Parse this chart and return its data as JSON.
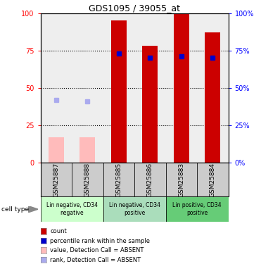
{
  "title": "GDS1095 / 39055_at",
  "samples": [
    "GSM25887",
    "GSM25888",
    "GSM25885",
    "GSM25886",
    "GSM25883",
    "GSM25884"
  ],
  "cell_types": [
    {
      "label": "Lin negative, CD34\nnegative",
      "start": 0,
      "end": 2,
      "color": "#ccffcc"
    },
    {
      "label": "Lin negative, CD34\npositive",
      "start": 2,
      "end": 4,
      "color": "#aaeebb"
    },
    {
      "label": "Lin positive, CD34\npositive",
      "start": 4,
      "end": 6,
      "color": "#66dd77"
    }
  ],
  "bar_heights": [
    null,
    null,
    95,
    78,
    100,
    87
  ],
  "bar_color_present": "#cc0000",
  "bar_color_absent": "#ffbbbb",
  "absent_values": [
    17,
    17,
    null,
    null,
    null,
    null
  ],
  "rank_values": [
    42,
    41,
    73,
    70,
    71,
    70
  ],
  "rank_absent": [
    true,
    true,
    false,
    false,
    false,
    false
  ],
  "rank_color_present": "#0000cc",
  "rank_color_absent": "#aaaaee",
  "ylim": [
    0,
    100
  ],
  "yticks": [
    0,
    25,
    50,
    75,
    100
  ],
  "background_color": "#ffffff",
  "plot_bg": "#eeeeee",
  "sample_bg": "#cccccc",
  "legend_items": [
    {
      "color": "#cc0000",
      "label": "count"
    },
    {
      "color": "#0000cc",
      "label": "percentile rank within the sample"
    },
    {
      "color": "#ffbbbb",
      "label": "value, Detection Call = ABSENT"
    },
    {
      "color": "#aaaaee",
      "label": "rank, Detection Call = ABSENT"
    }
  ]
}
